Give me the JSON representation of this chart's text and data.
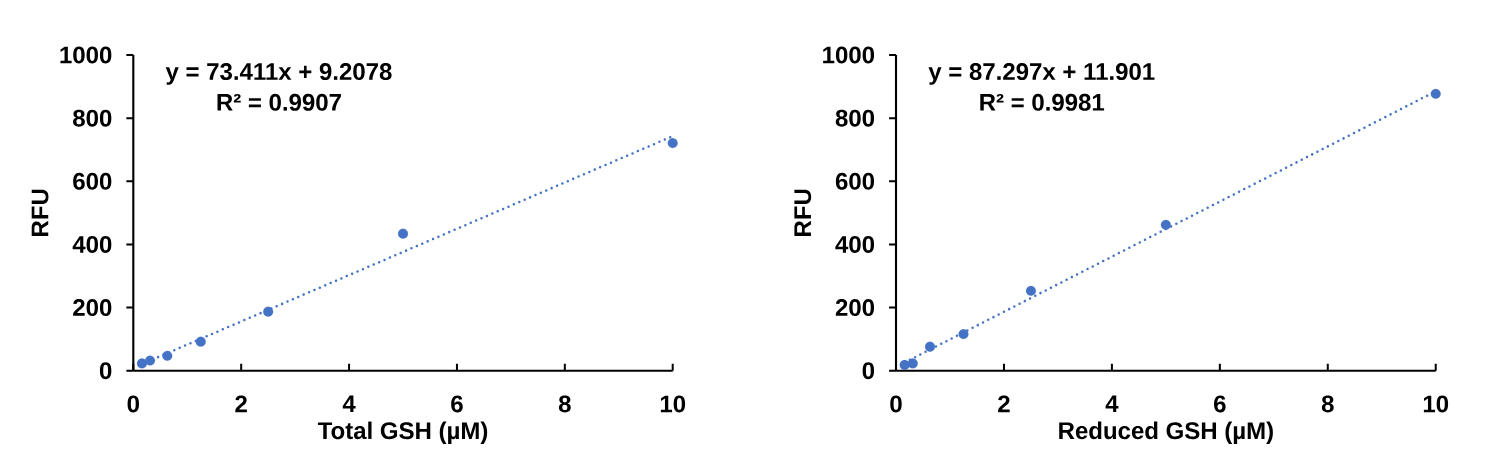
{
  "chart_data": [
    {
      "type": "scatter",
      "xlabel": "Total GSH (µM)",
      "ylabel": "RFU",
      "annotations": [
        "y = 73.411x + 9.2078",
        "R² = 0.9907"
      ],
      "series": [
        {
          "color": "#4472c4",
          "marker": "circle",
          "x": [
            0.16,
            0.31,
            0.63,
            1.25,
            2.5,
            5,
            10
          ],
          "values": [
            23,
            32,
            47,
            92,
            187,
            434,
            721
          ]
        },
        {
          "type": "line",
          "color": "#4472c4",
          "marker": "none",
          "line_style": "dotted",
          "x": [
            0.16,
            10
          ],
          "values": [
            21,
            743
          ]
        }
      ],
      "xlim": [
        0,
        10
      ],
      "ylim": [
        0,
        1000
      ],
      "xticks": [
        0,
        2,
        4,
        6,
        8,
        10
      ],
      "yticks": [
        0,
        200,
        400,
        600,
        800,
        1000
      ]
    },
    {
      "type": "scatter",
      "xlabel": "Reduced GSH (µM)",
      "ylabel": "RFU",
      "annotations": [
        "y = 87.297x + 11.901",
        "R² = 0.9981"
      ],
      "series": [
        {
          "color": "#4472c4",
          "marker": "circle",
          "x": [
            0.16,
            0.31,
            0.63,
            1.25,
            2.5,
            5,
            10
          ],
          "values": [
            18,
            23,
            76,
            116,
            253,
            462,
            877
          ]
        },
        {
          "type": "line",
          "color": "#4472c4",
          "marker": "none",
          "line_style": "dotted",
          "x": [
            0.16,
            10
          ],
          "values": [
            26,
            885
          ]
        }
      ],
      "xlim": [
        0,
        10
      ],
      "ylim": [
        0,
        1000
      ],
      "xticks": [
        0,
        2,
        4,
        6,
        8,
        10
      ],
      "yticks": [
        0,
        200,
        400,
        600,
        800,
        1000
      ]
    }
  ]
}
